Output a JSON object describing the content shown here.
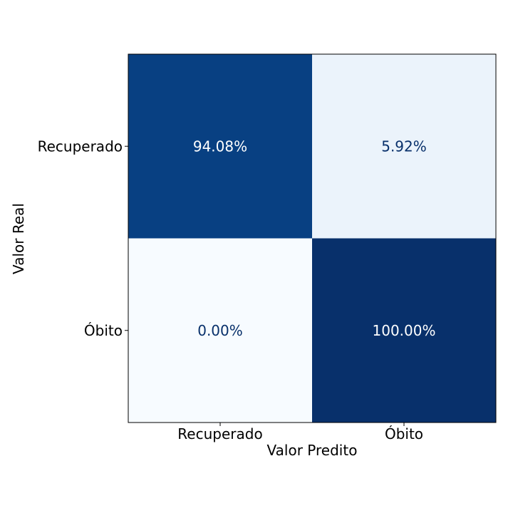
{
  "chart_data": {
    "type": "heatmap",
    "title": "",
    "xlabel": "Valor Predito",
    "ylabel": "Valor Real",
    "x_categories": [
      "Recuperado",
      "Óbito"
    ],
    "y_categories": [
      "Recuperado",
      "Óbito"
    ],
    "values": [
      [
        94.08,
        5.92
      ],
      [
        0.0,
        100.0
      ]
    ],
    "labels": [
      [
        "94.08%",
        "5.92%"
      ],
      [
        "0.00%",
        "100.00%"
      ]
    ],
    "colormap": "Blues",
    "grid": false,
    "colors": {
      "high": "#08306b",
      "mid_high": "#08458a",
      "low": "#eaf2fa",
      "min": "#f7fbff",
      "text_light": "#ffffff",
      "text_dark": "#08306b"
    }
  }
}
